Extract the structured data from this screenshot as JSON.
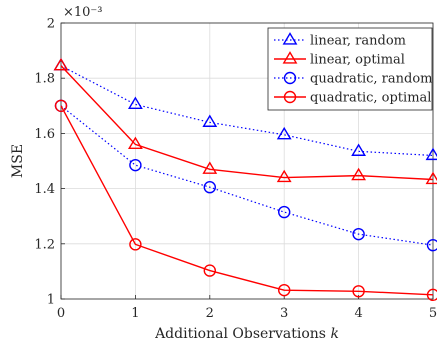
{
  "chart_data": {
    "type": "line",
    "x": [
      0,
      1,
      2,
      3,
      4,
      5
    ],
    "xlabel": "Additional Observations k",
    "ylabel": "MSE",
    "y_multiplier": "×10⁻³",
    "xlim": [
      0,
      5
    ],
    "ylim": [
      1.0,
      2.0
    ],
    "x_ticks": [
      "0",
      "1",
      "2",
      "3",
      "4",
      "5"
    ],
    "y_ticks": [
      "1",
      "1.2",
      "1.4",
      "1.6",
      "1.8",
      "2"
    ],
    "y_tick_values": [
      1.0,
      1.2,
      1.4,
      1.6,
      1.8,
      2.0
    ],
    "grid": true,
    "legend_position": "top-right",
    "series": [
      {
        "name": "linear, random",
        "values": [
          1.845,
          1.705,
          1.64,
          1.595,
          1.535,
          1.52
        ],
        "color": "#0000ff",
        "marker": "triangle",
        "line": "dotted"
      },
      {
        "name": "linear, optimal",
        "values": [
          1.845,
          1.56,
          1.47,
          1.44,
          1.447,
          1.433
        ],
        "color": "#ff0000",
        "marker": "triangle",
        "line": "solid"
      },
      {
        "name": "quadratic, random",
        "values": [
          1.7,
          1.485,
          1.405,
          1.315,
          1.235,
          1.195
        ],
        "color": "#0000ff",
        "marker": "circle",
        "line": "dotted"
      },
      {
        "name": "quadratic, optimal",
        "values": [
          1.7,
          1.198,
          1.103,
          1.032,
          1.028,
          1.015
        ],
        "color": "#ff0000",
        "marker": "circle",
        "line": "solid"
      }
    ]
  }
}
